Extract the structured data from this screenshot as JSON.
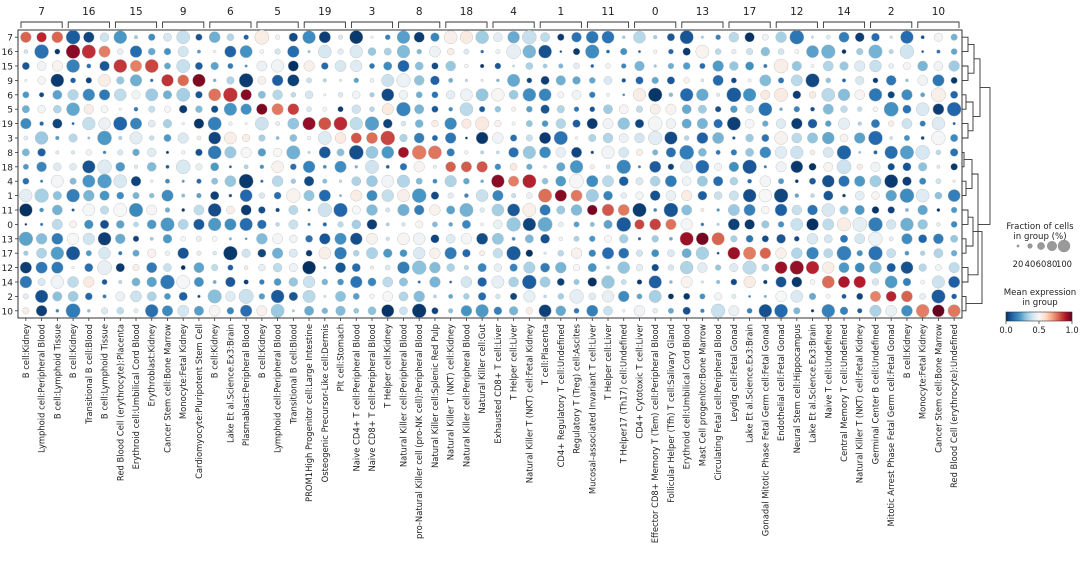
{
  "chart_data": {
    "type": "dotplot",
    "title": "",
    "groups_top": [
      {
        "label": "7",
        "span": 3
      },
      {
        "label": "16",
        "span": 3
      },
      {
        "label": "15",
        "span": 3
      },
      {
        "label": "9",
        "span": 3
      },
      {
        "label": "6",
        "span": 3
      },
      {
        "label": "5",
        "span": 3
      },
      {
        "label": "19",
        "span": 3
      },
      {
        "label": "3",
        "span": 3
      },
      {
        "label": "8",
        "span": 3
      },
      {
        "label": "18",
        "span": 3
      },
      {
        "label": "4",
        "span": 3
      },
      {
        "label": "1",
        "span": 3
      },
      {
        "label": "11",
        "span": 3
      },
      {
        "label": "0",
        "span": 3
      },
      {
        "label": "13",
        "span": 3
      },
      {
        "label": "17",
        "span": 3
      },
      {
        "label": "12",
        "span": 3
      },
      {
        "label": "14",
        "span": 3
      },
      {
        "label": "2",
        "span": 3
      },
      {
        "label": "10",
        "span": 3
      }
    ],
    "columns": [
      "B cell:Kidney",
      "Lymphoid cell:Peripheral Blood",
      "B cell:Lymphoid Tissue",
      "B cell:Kidney",
      "Transitional B cell:Blood",
      "B cell:Lymphoid Tissue",
      "Red Blood Cell (erythrocyte):Placenta",
      "Erythroid cell:Umbilical Cord Blood",
      "Erythroblast:Kidney",
      "Cancer Stem cell:Bone Marrow",
      "Monocyte:Fetal Kidney",
      "Cardiomyocyte:Pluripotent Stem Cell",
      "B cell:Kidney",
      "Lake Et al.Science.Ex3:Brain",
      "Plasmablast:Peripheral Blood",
      "B cell:Kidney",
      "Lymphoid cell:Peripheral Blood",
      "Transitional B cell:Blood",
      "PROM1High Progenitor cell:Large Intestine",
      "Osteogenic Precursor-Like cell:Dermis",
      "Plt cell:Stomach",
      "Naive CD4+ T cell:Peripheral Blood",
      "Naive CD8+ T cell:Peripheral Blood",
      "T Helper cell:Kidney",
      "Natural Killer cell:Peripheral Blood",
      "pro-Natural Killer cell (pro-NK cell):Peripheral Blood",
      "Natural Killer cell:Splenic Red Pulp",
      "Natural Killer T (NKT) cell:Kidney",
      "Natural Killer cell:Peripheral Blood",
      "Natural Killer cell:Gut",
      "Exhausted CD8+ T cell:Liver",
      "T Helper cell:Liver",
      "Natural Killer T (NKT) cell:Fetal Kidney",
      "T cell:Placenta",
      "CD4+ Regulatory T cell:Undefined",
      "Regulatory T (Treg) cell:Ascites",
      "Mucosal-associated Invariant T cell:Liver",
      "T Helper cell:Liver",
      "T Helper17 (Th17) cell:Undefined",
      "CD4+ Cytotoxic T cell:Liver",
      "Effector CD8+ Memory T (Tem) cell:Peripheral Blood",
      "Follicular Helper (Tfh) T cell:Salivary Gland",
      "Erythroid cell:Umbilical Cord Blood",
      "Mast Cell progenitor:Bone Marrow",
      "Circulating Fetal cell:Peripheral Blood",
      "Leydig cell:Fetal Gonad",
      "Lake Et al.Science.Ex3:Brain",
      "Gonadal Mitotic Phase Fetal Germ cell:Fetal Gonad",
      "Endothelial cell:Fetal Gonad",
      "Neural Stem cell:Hippocampus",
      "Lake Et al.Science.Ex3:Brain",
      "Naive T cell:Undefined",
      "Central Memory T cell:Undefined",
      "Natural Killer T (NKT) cell:Fetal Kidney",
      "Germinal Center B cell:Undefined",
      "Mitotic Arrest Phase Fetal Germ cell:Fetal Gonad",
      "B cell:Kidney",
      "Monocyte:Fetal Kidney",
      "Cancer Stem cell:Bone Marrow",
      "Red Blood Cell (erythrocyte):Undefined"
    ],
    "rows": [
      "7",
      "16",
      "15",
      "9",
      "6",
      "5",
      "19",
      "3",
      "8",
      "18",
      "4",
      "1",
      "11",
      "0",
      "13",
      "17",
      "12",
      "14",
      "2",
      "10"
    ],
    "legend_size": {
      "title": "Fraction of cells\nin group (%)",
      "ticks": [
        "20",
        "40",
        "60",
        "80",
        "100"
      ]
    },
    "legend_color": {
      "title": "Mean expression\nin group",
      "ticks": [
        "0.0",
        "0.5",
        "1.0"
      ]
    },
    "colormap": {
      "low": "#053061",
      "mid": "#f7f7f7",
      "high": "#67001f"
    }
  }
}
